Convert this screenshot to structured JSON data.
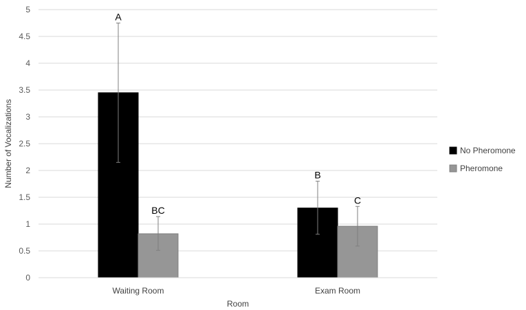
{
  "chart_data": {
    "type": "bar",
    "categories": [
      "Waiting Room",
      "Exam Room"
    ],
    "series": [
      {
        "name": "No Pheromone",
        "color": "#000000",
        "values": [
          3.45,
          1.3
        ],
        "error_low": [
          2.15,
          0.81
        ],
        "error_high": [
          4.75,
          1.8
        ],
        "significance": [
          "A",
          "B"
        ]
      },
      {
        "name": "Pheromone",
        "color": "#969696",
        "values": [
          0.82,
          0.96
        ],
        "error_low": [
          0.51,
          0.59
        ],
        "error_high": [
          1.14,
          1.33
        ],
        "significance": [
          "BC",
          "C"
        ]
      }
    ],
    "xlabel": "Room",
    "ylabel": "Number of Vocalizations",
    "ylim": [
      0,
      5
    ],
    "yticks": [
      "0",
      "0.5",
      "1",
      "1.5",
      "2",
      "2.5",
      "3",
      "3.5",
      "4",
      "4.5",
      "5"
    ],
    "grid": true,
    "legend_position": "right"
  }
}
